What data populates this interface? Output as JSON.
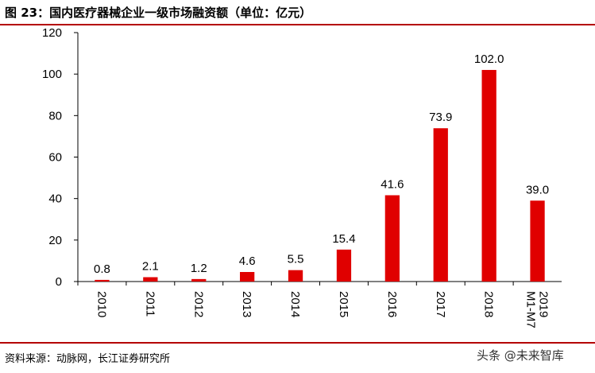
{
  "header": {
    "title": "图 23：国内医疗器械企业一级市场融资额（单位：亿元）"
  },
  "footer": {
    "source": "资料来源：动脉网，长江证券研究所",
    "watermark": "头条 @未来智库"
  },
  "colors": {
    "bar": "#e00000",
    "accent": "#b40000",
    "axis": "#000000"
  },
  "chart_data": {
    "type": "bar",
    "title": "图 23：国内医疗器械企业一级市场融资额（单位：亿元）",
    "categories": [
      "2010",
      "2011",
      "2012",
      "2013",
      "2014",
      "2015",
      "2016",
      "2017",
      "2018",
      "2019 M1-M7"
    ],
    "values": [
      0.8,
      2.1,
      1.2,
      4.6,
      5.5,
      15.4,
      41.6,
      73.9,
      102.0,
      39.0
    ],
    "value_labels": [
      "0.8",
      "2.1",
      "1.2",
      "4.6",
      "5.5",
      "15.4",
      "41.6",
      "73.9",
      "102.0",
      "39.0"
    ],
    "ylim": [
      0,
      120
    ],
    "yticks": [
      0,
      20,
      40,
      60,
      80,
      100,
      120
    ],
    "xlabel": "",
    "ylabel": "",
    "grid": false,
    "legend": "none"
  }
}
